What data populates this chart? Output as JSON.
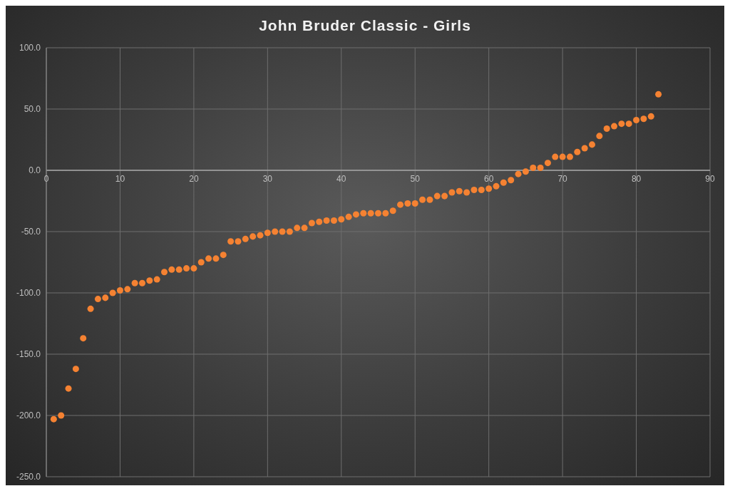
{
  "chart_data": {
    "type": "scatter",
    "title": "John Bruder Classic - Girls",
    "x": [
      1,
      2,
      3,
      4,
      5,
      6,
      7,
      8,
      9,
      10,
      11,
      12,
      13,
      14,
      15,
      16,
      17,
      18,
      19,
      20,
      21,
      22,
      23,
      24,
      25,
      26,
      27,
      28,
      29,
      30,
      31,
      32,
      33,
      34,
      35,
      36,
      37,
      38,
      39,
      40,
      41,
      42,
      43,
      44,
      45,
      46,
      47,
      48,
      49,
      50,
      51,
      52,
      53,
      54,
      55,
      56,
      57,
      58,
      59,
      60,
      61,
      62,
      63,
      64,
      65,
      66,
      67,
      68,
      69,
      70,
      71,
      72,
      73,
      74,
      75,
      76,
      77,
      78,
      79,
      80,
      81,
      82,
      83
    ],
    "series": [
      {
        "color": "#f58232",
        "values": [
          -203,
          -200,
          -178,
          -162,
          -137,
          -113,
          -105,
          -104,
          -100,
          -98,
          -97,
          -92,
          -92,
          -90,
          -89,
          -83,
          -81,
          -81,
          -80,
          -80,
          -75,
          -72,
          -72,
          -69,
          -58,
          -58,
          -56,
          -54,
          -53,
          -51,
          -50,
          -50,
          -50,
          -47,
          -47,
          -43,
          -42,
          -41,
          -41,
          -40,
          -38,
          -36,
          -35,
          -35,
          -35,
          -35,
          -33,
          -28,
          -27,
          -27,
          -24,
          -24,
          -21,
          -21,
          -18,
          -17,
          -18,
          -16,
          -16,
          -15,
          -13,
          -10,
          -8,
          -3,
          -1,
          2,
          2,
          6,
          11,
          11,
          11,
          15,
          18,
          21,
          28,
          34,
          36,
          38,
          38,
          41,
          42,
          44,
          62
        ]
      }
    ],
    "xlim": [
      0,
      90
    ],
    "xticks": [
      0,
      10,
      20,
      30,
      40,
      50,
      60,
      70,
      80,
      90
    ],
    "ylim": [
      -250,
      100
    ],
    "yticks": [
      {
        "value": -250,
        "label": "-250.0"
      },
      {
        "value": -200,
        "label": "-200.0"
      },
      {
        "value": -150,
        "label": "-150.0"
      },
      {
        "value": -100,
        "label": "-100.0"
      },
      {
        "value": -50,
        "label": "-50.0"
      },
      {
        "value": 0,
        "label": "0.0"
      },
      {
        "value": 50,
        "label": "50.0"
      },
      {
        "value": 100,
        "label": "100.0"
      }
    ],
    "grid": true,
    "marker": "circle",
    "legend": false
  }
}
